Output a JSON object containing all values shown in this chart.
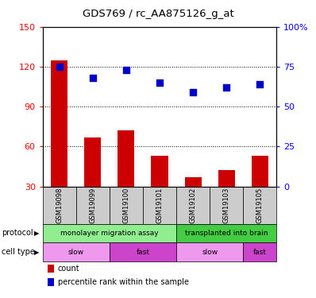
{
  "title": "GDS769 / rc_AA875126_g_at",
  "samples": [
    "GSM19098",
    "GSM19099",
    "GSM19100",
    "GSM19101",
    "GSM19102",
    "GSM19103",
    "GSM19105"
  ],
  "counts": [
    125,
    67,
    72,
    53,
    37,
    42,
    53
  ],
  "percentiles": [
    75,
    68,
    73,
    65,
    59,
    62,
    64
  ],
  "ylim_left": [
    30,
    150
  ],
  "ylim_right": [
    0,
    100
  ],
  "yticks_left": [
    30,
    60,
    90,
    120,
    150
  ],
  "yticks_right": [
    0,
    25,
    50,
    75,
    100
  ],
  "ytick_labels_right": [
    "0",
    "25",
    "50",
    "75",
    "100%"
  ],
  "grid_yticks": [
    60,
    90,
    120
  ],
  "bar_color": "#cc0000",
  "dot_color": "#0000cc",
  "protocol_groups": [
    {
      "label": "monolayer migration assay",
      "start": 0,
      "end": 4,
      "color": "#90ee90"
    },
    {
      "label": "transplanted into brain",
      "start": 4,
      "end": 7,
      "color": "#44cc44"
    }
  ],
  "cell_type_groups": [
    {
      "label": "slow",
      "start": 0,
      "end": 2,
      "color": "#ee99ee"
    },
    {
      "label": "fast",
      "start": 2,
      "end": 4,
      "color": "#cc44cc"
    },
    {
      "label": "slow",
      "start": 4,
      "end": 6,
      "color": "#ee99ee"
    },
    {
      "label": "fast",
      "start": 6,
      "end": 7,
      "color": "#cc44cc"
    }
  ],
  "sample_bg_color": "#cccccc",
  "row_labels": [
    "protocol",
    "cell type"
  ],
  "legend_items": [
    {
      "color": "#cc0000",
      "label": "count"
    },
    {
      "color": "#0000cc",
      "label": "percentile rank within the sample"
    }
  ]
}
